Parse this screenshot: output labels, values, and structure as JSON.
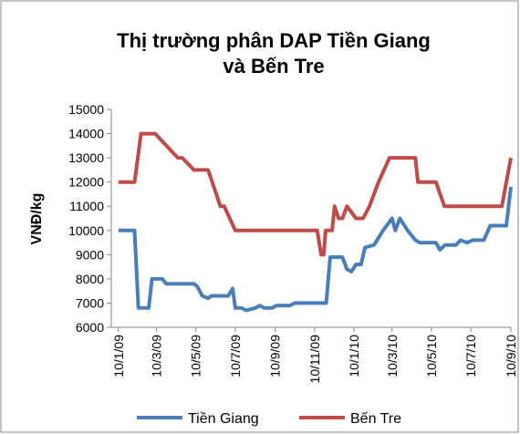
{
  "chart_data": {
    "type": "line",
    "title_lines": [
      "Thị trường phân DAP Tiền Giang",
      "và Bến Tre"
    ],
    "y_label": "VNĐ/kg",
    "ylim": [
      6000,
      15000
    ],
    "yticks": [
      6000,
      7000,
      8000,
      9000,
      10000,
      11000,
      12000,
      13000,
      14000,
      15000
    ],
    "xlim": [
      "2008-12-30",
      "2010-09-10"
    ],
    "xticks": [
      {
        "value": "2009-01-10",
        "label": "10/1/09"
      },
      {
        "value": "2009-03-10",
        "label": "10/3/09"
      },
      {
        "value": "2009-05-10",
        "label": "10/5/09"
      },
      {
        "value": "2009-07-10",
        "label": "10/7/09"
      },
      {
        "value": "2009-09-10",
        "label": "10/9/09"
      },
      {
        "value": "2009-11-10",
        "label": "10/11/09"
      },
      {
        "value": "2010-01-10",
        "label": "10/1/10"
      },
      {
        "value": "2010-03-10",
        "label": "10/3/10"
      },
      {
        "value": "2010-05-10",
        "label": "10/5/10"
      },
      {
        "value": "2010-07-10",
        "label": "10/7/10"
      },
      {
        "value": "2010-09-10",
        "label": "10/9/10"
      }
    ],
    "grid": false,
    "legend": "bottom",
    "series": [
      {
        "name": "Tiền Giang",
        "color": "#4a7ebb",
        "x": [
          "2009-01-10",
          "2009-02-04",
          "2009-02-10",
          "2009-02-26",
          "2009-03-03",
          "2009-03-19",
          "2009-03-25",
          "2009-05-07",
          "2009-05-12",
          "2009-05-20",
          "2009-05-29",
          "2009-06-03",
          "2009-06-29",
          "2009-07-06",
          "2009-07-10",
          "2009-07-20",
          "2009-07-27",
          "2009-08-10",
          "2009-08-17",
          "2009-08-24",
          "2009-09-05",
          "2009-09-12",
          "2009-10-03",
          "2009-10-10",
          "2009-11-28",
          "2009-12-04",
          "2009-12-23",
          "2009-12-30",
          "2010-01-06",
          "2010-01-13",
          "2010-01-21",
          "2010-01-27",
          "2010-02-10",
          "2010-02-24",
          "2010-03-10",
          "2010-03-15",
          "2010-03-22",
          "2010-04-03",
          "2010-04-15",
          "2010-04-22",
          "2010-05-17",
          "2010-05-23",
          "2010-05-31",
          "2010-06-17",
          "2010-06-24",
          "2010-07-04",
          "2010-07-13",
          "2010-07-30",
          "2010-08-09",
          "2010-09-03",
          "2010-09-10"
        ],
        "values": [
          10000,
          10000,
          6800,
          6800,
          8000,
          8000,
          7800,
          7800,
          7700,
          7300,
          7200,
          7300,
          7300,
          7600,
          6800,
          6800,
          6700,
          6800,
          6900,
          6800,
          6800,
          6900,
          6900,
          7000,
          7000,
          8900,
          8900,
          8400,
          8300,
          8600,
          8600,
          9300,
          9400,
          10000,
          10500,
          10000,
          10500,
          10000,
          9600,
          9500,
          9500,
          9200,
          9400,
          9400,
          9600,
          9500,
          9600,
          9600,
          10200,
          10200,
          11800
        ]
      },
      {
        "name": "Bến Tre",
        "color": "#be4b48",
        "x": [
          "2009-01-10",
          "2009-02-04",
          "2009-02-14",
          "2009-03-08",
          "2009-04-12",
          "2009-04-19",
          "2009-05-07",
          "2009-05-29",
          "2009-06-17",
          "2009-06-23",
          "2009-07-10",
          "2009-11-14",
          "2009-11-20",
          "2009-11-24",
          "2009-11-27",
          "2009-12-07",
          "2009-12-11",
          "2009-12-17",
          "2009-12-23",
          "2009-12-30",
          "2010-01-13",
          "2010-01-24",
          "2010-02-03",
          "2010-02-17",
          "2010-03-06",
          "2010-04-15",
          "2010-04-19",
          "2010-05-17",
          "2010-05-30",
          "2010-08-27",
          "2010-09-10"
        ],
        "values": [
          12000,
          12000,
          14000,
          14000,
          13000,
          13000,
          12500,
          12500,
          11000,
          11000,
          10000,
          10000,
          9000,
          9000,
          10000,
          10000,
          11000,
          10500,
          10500,
          11000,
          10500,
          10500,
          11000,
          12000,
          13000,
          13000,
          12000,
          12000,
          11000,
          11000,
          13000
        ]
      }
    ]
  }
}
